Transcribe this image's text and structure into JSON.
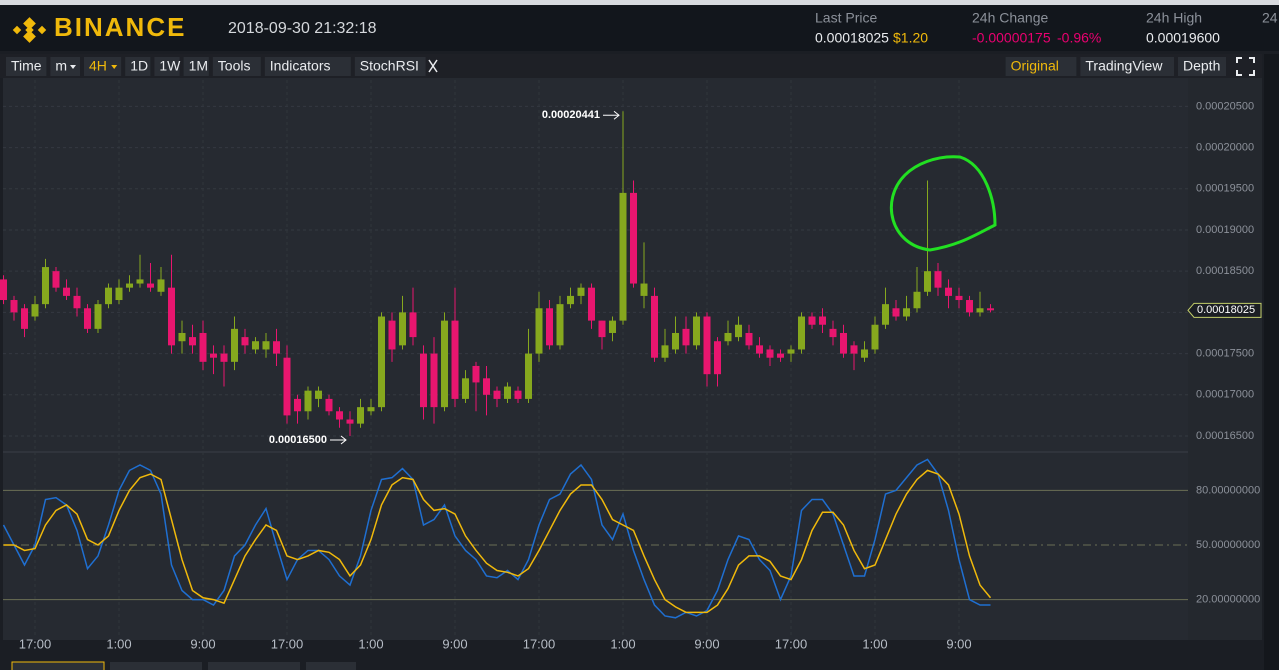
{
  "header": {
    "brand": "BINANCE",
    "timestamp": "2018-09-30 21:32:18",
    "stats": [
      {
        "label": "Last Price",
        "value": "0.00018025",
        "extra": "$1.20"
      },
      {
        "label": "24h Change",
        "value": "-0.00000175",
        "extra": "-0.96%"
      },
      {
        "label": "24h High",
        "value": "0.00019600"
      },
      {
        "label": "24"
      }
    ]
  },
  "toolbar": {
    "left": [
      "Time",
      "m",
      "4H",
      "1D",
      "1W",
      "1M",
      "Tools",
      "Indicators",
      "StochRSI"
    ],
    "right": [
      "Original",
      "TradingView",
      "Depth"
    ]
  },
  "chart_data": [
    {
      "type": "candlestick",
      "up_color": "#86a81e",
      "down_color": "#e8166f",
      "categories": [
        null,
        null,
        null,
        null,
        null,
        null,
        null,
        null,
        null,
        null,
        null,
        null,
        null,
        null,
        null,
        null,
        null,
        null,
        null,
        null,
        null,
        null,
        null,
        null,
        null,
        null,
        null,
        null,
        null,
        null,
        null,
        null,
        null,
        null,
        null,
        null,
        null,
        null,
        null,
        null,
        null,
        null,
        null,
        null,
        null,
        null,
        null,
        null,
        null,
        null,
        null,
        null,
        null,
        null,
        null,
        null,
        null,
        null,
        null,
        null,
        null,
        null,
        null,
        null,
        null,
        null,
        null,
        null,
        null,
        null,
        null,
        null,
        null,
        null,
        null,
        null,
        null,
        null,
        null,
        null,
        null,
        null,
        null,
        null,
        null,
        null,
        null,
        null,
        null,
        null,
        null,
        null,
        null,
        null,
        null
      ],
      "open": [
        0.000184,
        0.0001815,
        0.0001805,
        0.0001795,
        0.000181,
        0.000185,
        0.000183,
        0.000182,
        0.0001805,
        0.000178,
        0.000181,
        0.0001815,
        0.000183,
        0.0001835,
        0.0001835,
        0.0001825,
        0.000183,
        0.0001765,
        0.000177,
        0.0001775,
        0.000175,
        0.000175,
        0.000174,
        0.000177,
        0.0001755,
        0.0001755,
        0.0001765,
        0.0001745,
        0.0001695,
        0.000168,
        0.0001695,
        0.0001695,
        0.000168,
        0.000167,
        0.0001665,
        0.000168,
        0.0001685,
        0.000179,
        0.000176,
        0.00018,
        0.000175,
        0.000175,
        0.0001685,
        0.000179,
        0.0001695,
        0.0001735,
        0.000172,
        0.0001705,
        0.0001695,
        0.0001705,
        0.0001695,
        0.000175,
        0.0001805,
        0.000176,
        0.000181,
        0.000182,
        0.000183,
        0.000179,
        0.0001775,
        0.000179,
        0.0001945,
        0.000182,
        0.000182,
        0.0001745,
        0.0001755,
        0.000178,
        0.000176,
        0.0001795,
        0.0001765,
        0.0001765,
        0.000177,
        0.0001775,
        0.000176,
        0.0001755,
        0.000175,
        0.000175,
        0.0001755,
        0.0001795,
        0.0001795,
        0.000178,
        0.0001775,
        0.000176,
        0.0001745,
        0.0001755,
        0.0001785,
        0.0001805,
        0.0001795,
        0.0001805,
        0.0001825,
        0.000185,
        0.000183,
        0.000182,
        0.0001815,
        0.00018,
        0.0001805
      ],
      "high": [
        0.0001845,
        0.000182,
        0.000181,
        0.000182,
        0.0001865,
        0.0001855,
        0.000184,
        0.000183,
        0.000181,
        0.0001815,
        0.0001835,
        0.000184,
        0.0001845,
        0.000187,
        0.000186,
        0.0001855,
        0.000187,
        0.000179,
        0.0001785,
        0.000179,
        0.000176,
        0.000176,
        0.0001795,
        0.000178,
        0.000177,
        0.0001775,
        0.000178,
        0.000176,
        0.00017,
        0.000171,
        0.000171,
        0.00017,
        0.0001685,
        0.000168,
        0.0001695,
        0.0001695,
        0.00018,
        0.00018,
        0.000182,
        0.000183,
        0.000176,
        0.000177,
        0.00018,
        0.000183,
        0.000173,
        0.000174,
        0.0001735,
        0.000171,
        0.0001715,
        0.000171,
        0.000178,
        0.0001825,
        0.0001815,
        0.000182,
        0.000183,
        0.0001835,
        0.0001835,
        0.000179,
        0.0001795,
        0.00020441,
        0.000196,
        0.0001885,
        0.000183,
        0.000178,
        0.0001795,
        0.0001795,
        0.00018,
        0.00018,
        0.000177,
        0.000179,
        0.0001795,
        0.0001785,
        0.000177,
        0.000176,
        0.0001755,
        0.000176,
        0.00018,
        0.00018,
        0.0001805,
        0.000179,
        0.0001785,
        0.0001765,
        0.0001765,
        0.0001795,
        0.000183,
        0.0001815,
        0.000182,
        0.0001855,
        0.000196,
        0.000186,
        0.000184,
        0.000183,
        0.000182,
        0.0001825,
        0.000181
      ],
      "low": [
        0.000181,
        0.000179,
        0.000177,
        0.000179,
        0.0001805,
        0.0001825,
        0.0001815,
        0.0001795,
        0.0001775,
        0.0001775,
        0.0001805,
        0.000181,
        0.0001825,
        0.000183,
        0.0001825,
        0.000182,
        0.000175,
        0.000175,
        0.000175,
        0.000173,
        0.0001725,
        0.000171,
        0.000173,
        0.000175,
        0.000175,
        0.0001745,
        0.0001735,
        0.0001665,
        0.0001665,
        0.000167,
        0.0001685,
        0.0001675,
        0.000166,
        0.000165,
        0.000166,
        0.0001675,
        0.000168,
        0.000174,
        0.0001755,
        0.000176,
        0.000167,
        0.0001665,
        0.000168,
        0.0001685,
        0.000169,
        0.000168,
        0.0001675,
        0.0001685,
        0.000169,
        0.000169,
        0.000169,
        0.000174,
        0.0001755,
        0.0001755,
        0.0001805,
        0.000181,
        0.000178,
        0.0001755,
        0.0001765,
        0.0001785,
        0.000183,
        0.0001805,
        0.000174,
        0.000174,
        0.000175,
        0.000175,
        0.0001755,
        0.000171,
        0.000171,
        0.000176,
        0.0001765,
        0.0001755,
        0.0001745,
        0.0001735,
        0.000174,
        0.000174,
        0.000175,
        0.000178,
        0.0001775,
        0.000176,
        0.0001745,
        0.000173,
        0.000174,
        0.000175,
        0.000178,
        0.000179,
        0.000179,
        0.00018,
        0.000182,
        0.000182,
        0.0001805,
        0.0001805,
        0.0001795,
        0.0001795,
        0.00018
      ],
      "close": [
        0.0001815,
        0.00018,
        0.000178,
        0.000181,
        0.0001855,
        0.000183,
        0.000182,
        0.0001805,
        0.000178,
        0.000181,
        0.000183,
        0.000183,
        0.0001835,
        0.000184,
        0.000183,
        0.000184,
        0.000176,
        0.0001775,
        0.000176,
        0.000174,
        0.0001745,
        0.000174,
        0.000178,
        0.000176,
        0.0001765,
        0.0001765,
        0.000175,
        0.0001675,
        0.000168,
        0.0001705,
        0.0001705,
        0.000168,
        0.000167,
        0.0001665,
        0.0001685,
        0.0001685,
        0.0001795,
        0.0001755,
        0.00018,
        0.000177,
        0.0001685,
        0.0001685,
        0.000179,
        0.0001695,
        0.000172,
        0.0001715,
        0.00017,
        0.0001695,
        0.000171,
        0.0001695,
        0.000175,
        0.0001805,
        0.000176,
        0.000181,
        0.000182,
        0.000183,
        0.000179,
        0.000177,
        0.000179,
        0.0001945,
        0.0001835,
        0.0001835,
        0.0001745,
        0.000176,
        0.0001775,
        0.000176,
        0.0001795,
        0.0001725,
        0.0001725,
        0.0001775,
        0.0001785,
        0.000176,
        0.000175,
        0.0001745,
        0.0001745,
        0.0001755,
        0.0001795,
        0.0001785,
        0.0001785,
        0.000177,
        0.000175,
        0.000175,
        0.0001755,
        0.0001785,
        0.000181,
        0.0001795,
        0.0001805,
        0.0001825,
        0.000185,
        0.000183,
        0.000182,
        0.0001815,
        0.00018,
        0.0001805,
        0.00018025
      ],
      "ylim": [
        0.0001633,
        0.0002082
      ],
      "yticks": [
        {
          "value": 0.000165,
          "label": "0.00016500"
        },
        {
          "value": 0.00017,
          "label": "0.00017000"
        },
        {
          "value": 0.000175,
          "label": "0.00017500"
        },
        {
          "value": 0.00018,
          "label": "0.00018000"
        },
        {
          "value": 0.000185,
          "label": "0.00018500"
        },
        {
          "value": 0.00019,
          "label": "0.00019000"
        },
        {
          "value": 0.000195,
          "label": "0.00019500"
        },
        {
          "value": 0.0002,
          "label": "0.00020000"
        },
        {
          "value": 0.000205,
          "label": "0.00020500"
        }
      ],
      "xticks": [
        {
          "value": 3,
          "label": "17:00"
        },
        {
          "value": 11,
          "label": "1:00"
        },
        {
          "value": 19,
          "label": "9:00"
        },
        {
          "value": 27,
          "label": "17:00"
        },
        {
          "value": 35,
          "label": "1:00"
        },
        {
          "value": 43,
          "label": "9:00"
        },
        {
          "value": 51,
          "label": "17:00"
        },
        {
          "value": 59,
          "label": "1:00"
        },
        {
          "value": 67,
          "label": "9:00"
        },
        {
          "value": 75,
          "label": "17:00"
        },
        {
          "value": 83,
          "label": "1:00"
        },
        {
          "value": 91,
          "label": "9:00"
        }
      ],
      "annotations": [
        {
          "value": 0.00020441,
          "label": "0.00020441"
        },
        {
          "value": 0.000165,
          "label": "0.00016500"
        }
      ],
      "last_price": {
        "value": 0.00018025,
        "label": "0.00018025"
      },
      "grid": true
    },
    {
      "type": "line",
      "ylim": [
        0,
        100
      ],
      "yticks": [
        {
          "value": 20,
          "label": "20.00000000"
        },
        {
          "value": 50,
          "label": "50.00000000"
        },
        {
          "value": 80,
          "label": "80.00000000"
        }
      ],
      "series": [
        {
          "color": "#1f6fd1",
          "values": [
            61,
            50,
            39,
            50,
            75,
            76,
            72,
            58,
            37,
            44,
            61,
            80,
            91,
            94,
            91,
            78,
            39,
            25,
            20,
            20,
            17,
            25,
            44,
            50,
            61,
            70,
            50,
            31,
            42,
            47,
            47,
            42,
            33,
            28,
            44,
            69,
            86,
            87,
            92,
            86,
            61,
            64,
            72,
            55,
            47,
            42,
            33,
            32,
            36,
            31,
            42,
            61,
            75,
            78,
            89,
            94,
            86,
            61,
            53,
            67,
            47,
            31,
            17,
            11,
            10,
            13,
            11,
            14,
            25,
            42,
            55,
            53,
            42,
            36,
            20,
            33,
            69,
            75,
            75,
            67,
            50,
            33,
            33,
            53,
            78,
            80,
            87,
            94,
            97,
            89,
            69,
            42,
            20,
            17,
            17
          ]
        },
        {
          "color": "#f0b90b",
          "values": [
            50,
            50,
            47,
            48,
            61,
            69,
            72,
            67,
            53,
            50,
            55,
            69,
            80,
            87,
            89,
            86,
            64,
            42,
            25,
            21,
            20,
            18,
            31,
            44,
            53,
            61,
            58,
            44,
            42,
            44,
            47,
            46,
            42,
            33,
            39,
            53,
            72,
            83,
            87,
            86,
            75,
            69,
            70,
            67,
            55,
            47,
            40,
            36,
            35,
            33,
            37,
            47,
            58,
            69,
            78,
            83,
            83,
            75,
            64,
            61,
            58,
            44,
            31,
            20,
            16,
            13,
            13,
            13,
            17,
            26,
            39,
            44,
            44,
            41,
            33,
            31,
            42,
            58,
            68,
            68,
            61,
            47,
            37,
            39,
            53,
            67,
            78,
            86,
            91,
            89,
            83,
            67,
            44,
            28,
            21
          ]
        }
      ]
    }
  ]
}
